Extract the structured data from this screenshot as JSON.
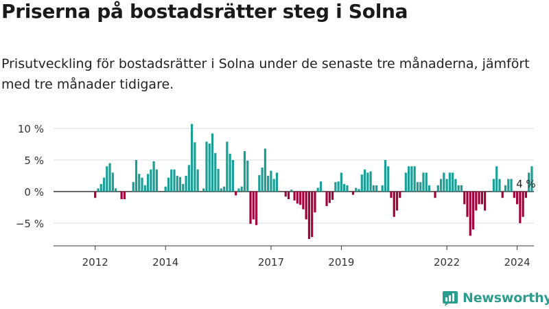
{
  "title": "Priserna på bostadsrätter steg i Solna",
  "subtitle": "Prisutveckling för bostadsrätter i Solna under de senaste tre månaderna, jämfört med tre månader tidigare.",
  "brand": {
    "name": "Newsworthy",
    "icon": "newsworthy-logo-icon"
  },
  "colors": {
    "positive": "#1a9e95",
    "negative": "#a3003c",
    "grid": "#dcdcdc",
    "axis": "#333333",
    "brand": "#2a9d8f"
  },
  "chart_data": {
    "type": "bar",
    "ylabel": "",
    "xlabel": "",
    "ylim": [
      -8.5,
      11
    ],
    "yticks": [
      {
        "value": 10,
        "label": "10 %"
      },
      {
        "value": 5,
        "label": "5 %"
      },
      {
        "value": 0,
        "label": "0 %"
      },
      {
        "value": -5,
        "label": "−5 %"
      }
    ],
    "xticks": [
      {
        "index": 6,
        "label": "2012"
      },
      {
        "index": 30,
        "label": "2014"
      },
      {
        "index": 66,
        "label": "2017"
      },
      {
        "index": 90,
        "label": "2019"
      },
      {
        "index": 126,
        "label": "2022"
      },
      {
        "index": 150,
        "label": "2024"
      }
    ],
    "annotation": {
      "text": "4 %",
      "index": 153
    },
    "values": [
      0,
      0,
      0,
      0,
      0,
      0,
      -1,
      0.5,
      1.2,
      2.2,
      4,
      4.5,
      3,
      0.5,
      0,
      -1.2,
      -1.2,
      0,
      0,
      1.5,
      5,
      2.8,
      2.2,
      1,
      2.8,
      3.5,
      4.8,
      3.5,
      0,
      0,
      0.8,
      2.2,
      3.5,
      3.5,
      2.5,
      2.3,
      1.2,
      2.5,
      4.2,
      10.7,
      7.8,
      3.5,
      0,
      0.5,
      7.9,
      7.6,
      9.2,
      6.1,
      3.6,
      0.5,
      0.8,
      7.9,
      6,
      5,
      -0.6,
      0.5,
      0.8,
      6.4,
      4.9,
      -5.1,
      -4.4,
      -5.3,
      2.6,
      3.8,
      6.8,
      2.5,
      3.3,
      2,
      3,
      0,
      0,
      -0.8,
      -1.2,
      0.3,
      -1.4,
      -1.9,
      -2.1,
      -2.8,
      -4.4,
      -7.5,
      -7.2,
      -3.3,
      0.6,
      1.6,
      0,
      -2.3,
      -1.8,
      -1.3,
      1.5,
      1.6,
      3,
      1.2,
      1,
      0,
      -0.5,
      0.6,
      0.4,
      2.7,
      3.5,
      3,
      3.2,
      1,
      1,
      0,
      1,
      5,
      4,
      -1,
      -4,
      -3,
      -1,
      0,
      3,
      4,
      4,
      4,
      1.5,
      1.5,
      3,
      3,
      1,
      0,
      -1,
      1,
      2,
      3,
      2,
      3,
      3,
      2,
      1,
      1,
      -2,
      -4,
      -7,
      -6,
      -3,
      -2,
      -2,
      -3,
      0,
      0,
      2,
      4,
      2,
      -1,
      1,
      2,
      2,
      -1,
      -2,
      -5,
      -4,
      -1,
      3,
      4
    ]
  }
}
